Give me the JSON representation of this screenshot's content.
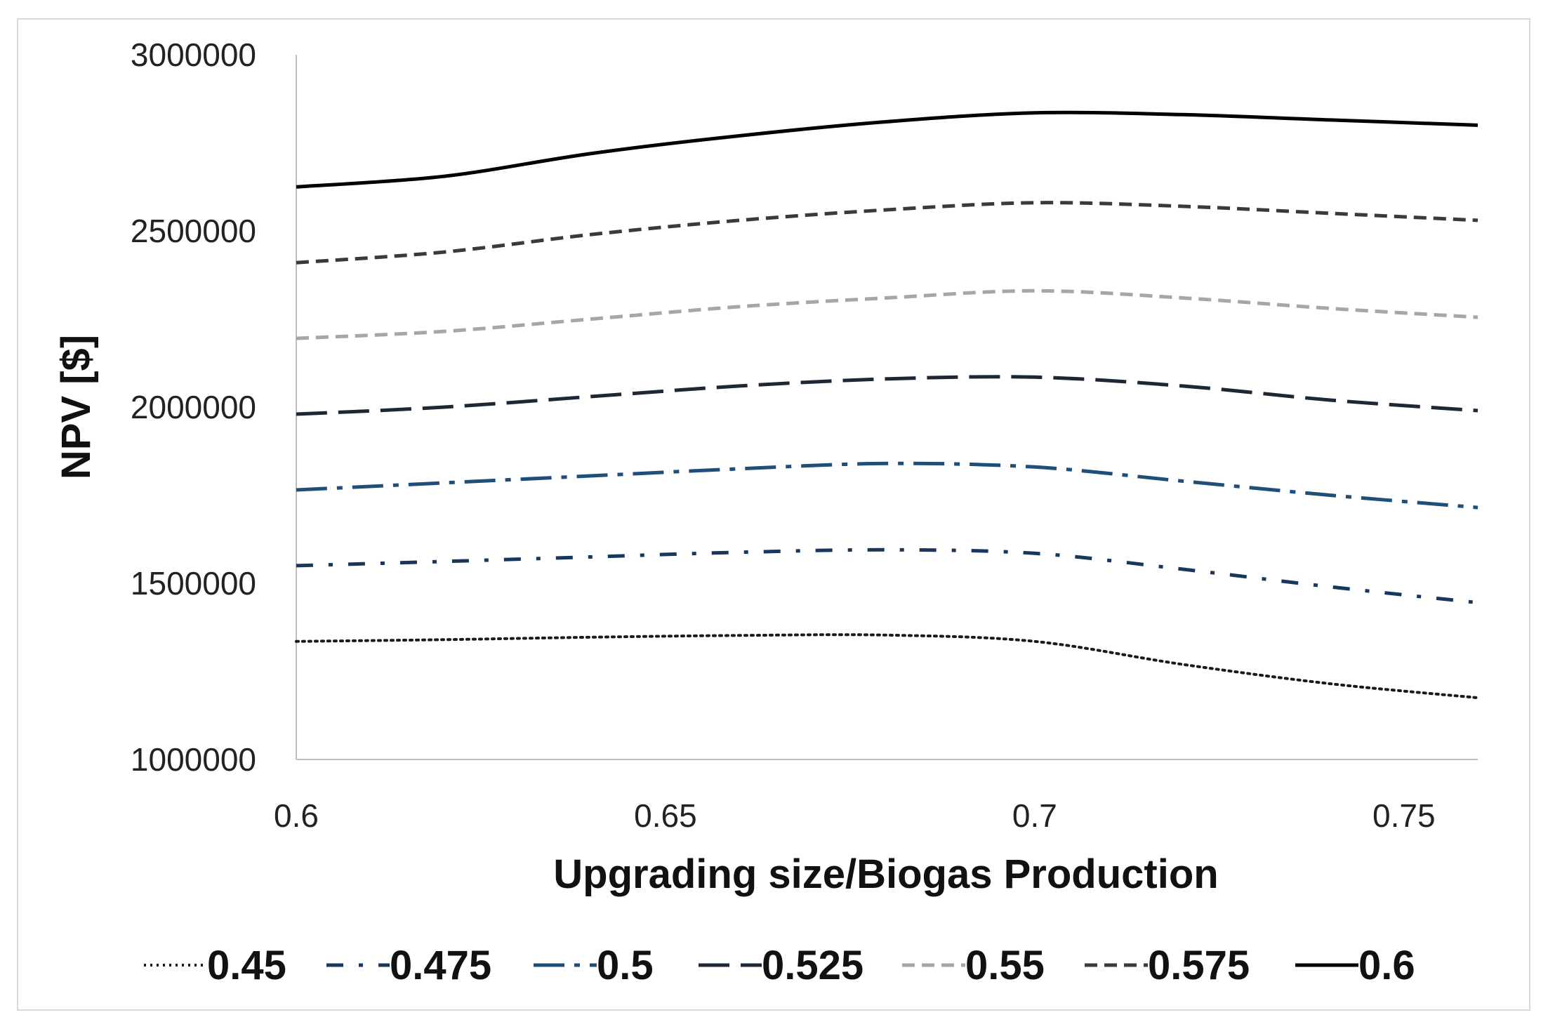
{
  "chart_data": {
    "type": "line",
    "title": "",
    "xlabel": "Upgrading size/Biogas Production",
    "ylabel": "NPV [$]",
    "xlim": [
      0.6,
      0.76
    ],
    "ylim": [
      1000000,
      3000000
    ],
    "x_ticks": [
      0.6,
      0.65,
      0.7,
      0.75
    ],
    "x_tick_labels": [
      "0.6",
      "0.65",
      "0.7",
      "0.75"
    ],
    "y_ticks": [
      1000000,
      1500000,
      2000000,
      2500000,
      3000000
    ],
    "y_tick_labels": [
      "1000000",
      "1500000",
      "2000000",
      "2500000",
      "3000000"
    ],
    "grid": false,
    "legend_position": "bottom",
    "x": [
      0.6,
      0.62,
      0.64,
      0.66,
      0.68,
      0.7,
      0.72,
      0.74,
      0.76
    ],
    "series": [
      {
        "name": "0.45",
        "style": "dotted",
        "color": "#1a1a1a",
        "values": [
          1335000,
          1340000,
          1347000,
          1352000,
          1353000,
          1335000,
          1270000,
          1215000,
          1175000
        ]
      },
      {
        "name": "0.475",
        "style": "dashdot-sparse",
        "color": "#17375e",
        "values": [
          1550000,
          1562000,
          1575000,
          1588000,
          1595000,
          1585000,
          1540000,
          1490000,
          1445000
        ]
      },
      {
        "name": "0.5",
        "style": "dashdot",
        "color": "#1f4e79",
        "values": [
          1765000,
          1785000,
          1805000,
          1825000,
          1840000,
          1830000,
          1790000,
          1750000,
          1715000
        ]
      },
      {
        "name": "0.525",
        "style": "longdash",
        "color": "#1c2836",
        "values": [
          1980000,
          2000000,
          2030000,
          2060000,
          2080000,
          2085000,
          2060000,
          2020000,
          1990000
        ]
      },
      {
        "name": "0.55",
        "style": "dashed",
        "color": "#a6a6a6",
        "values": [
          2195000,
          2215000,
          2250000,
          2285000,
          2310000,
          2330000,
          2310000,
          2280000,
          2255000
        ]
      },
      {
        "name": "0.575",
        "style": "dashed",
        "color": "#3a3a3a",
        "values": [
          2410000,
          2440000,
          2490000,
          2530000,
          2560000,
          2580000,
          2570000,
          2550000,
          2530000
        ]
      },
      {
        "name": "0.6",
        "style": "solid",
        "color": "#000000",
        "values": [
          2625000,
          2655000,
          2720000,
          2770000,
          2810000,
          2835000,
          2830000,
          2815000,
          2800000
        ]
      }
    ]
  }
}
